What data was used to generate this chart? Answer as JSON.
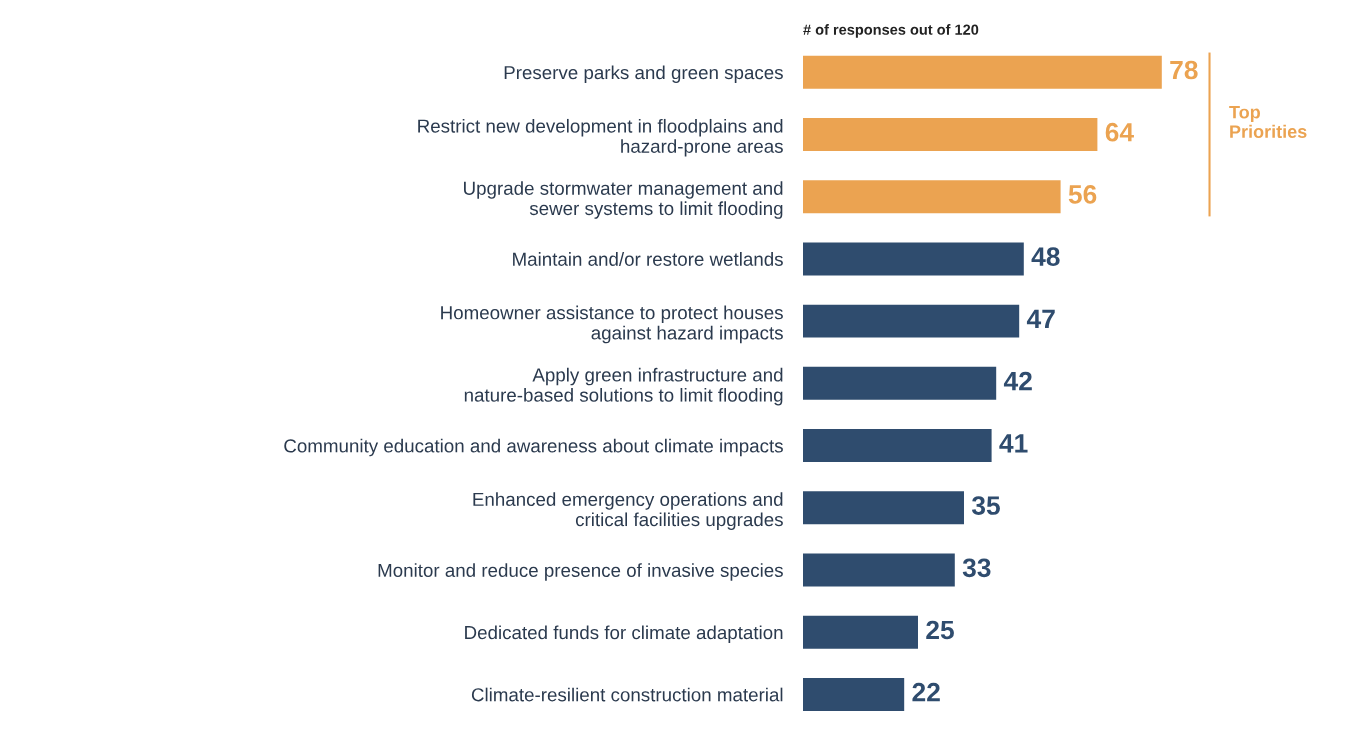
{
  "chart_data": {
    "type": "bar",
    "orientation": "horizontal",
    "title": "# of responses out of 120",
    "categories": [
      "Preserve parks and green spaces",
      "Restrict new development in floodplains and\nhazard-prone areas",
      "Upgrade stormwater management and\nsewer systems to limit flooding",
      "Maintain and/or restore wetlands",
      "Homeowner assistance to protect houses\nagainst hazard impacts",
      "Apply green infrastructure and\nnature-based solutions to limit flooding",
      "Community education and awareness about climate impacts",
      "Enhanced emergency operations and\ncritical facilities upgrades",
      "Monitor and reduce presence of invasive species",
      "Dedicated funds for climate adaptation",
      "Climate-resilient construction material"
    ],
    "values": [
      78,
      64,
      56,
      48,
      47,
      42,
      41,
      35,
      33,
      25,
      22
    ],
    "colors": [
      "#eba351",
      "#eba351",
      "#eba351",
      "#2f4c6e",
      "#2f4c6e",
      "#2f4c6e",
      "#2f4c6e",
      "#2f4c6e",
      "#2f4c6e",
      "#2f4c6e",
      "#2f4c6e"
    ],
    "data_labels": true,
    "annotations": [
      "Top\nPriorities"
    ],
    "grid": false,
    "tick_labels": "y"
  }
}
